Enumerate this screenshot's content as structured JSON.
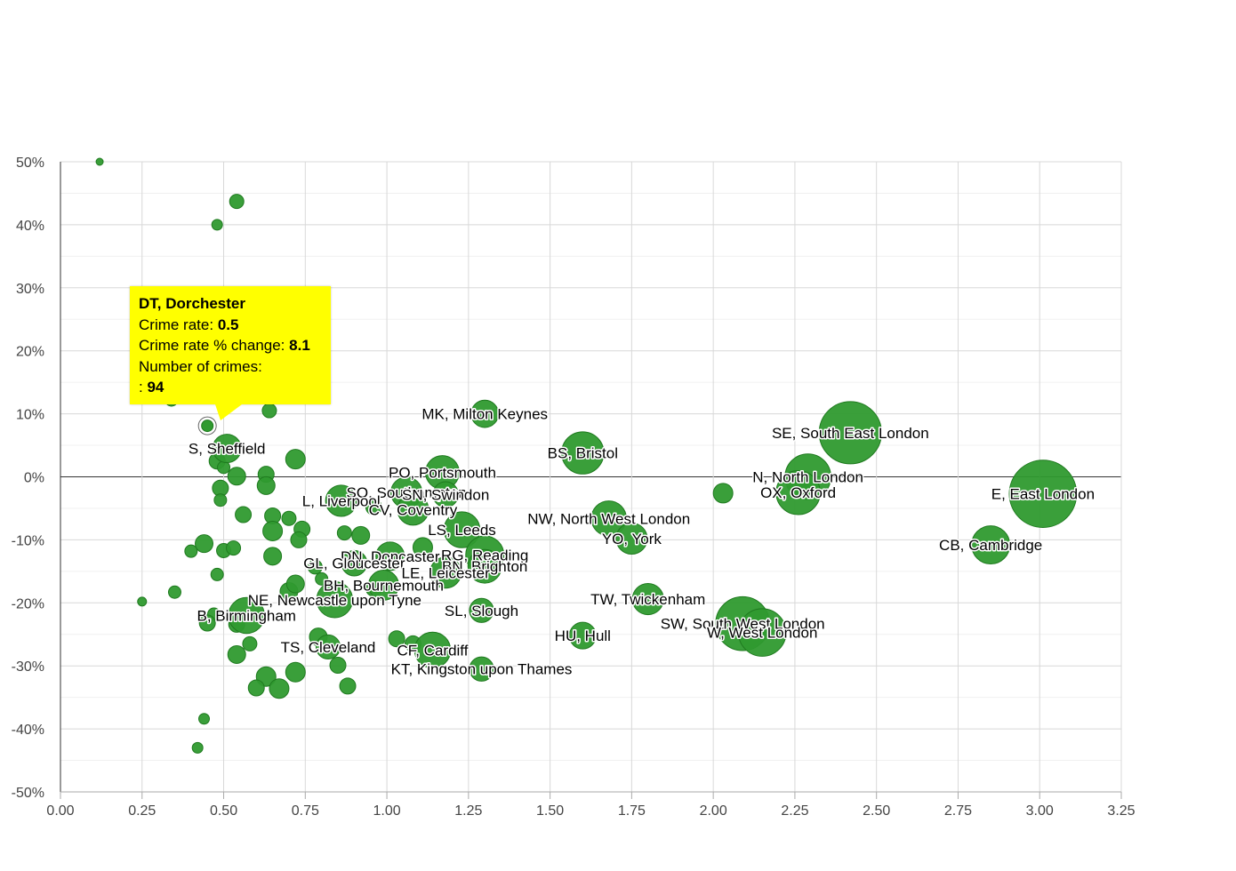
{
  "chart_data": {
    "type": "scatter",
    "variant": "bubble",
    "xlim": [
      0,
      3.25
    ],
    "ylim": [
      -50,
      50
    ],
    "x_ticks": [
      0,
      0.25,
      0.5,
      0.75,
      1,
      1.25,
      1.5,
      1.75,
      2,
      2.25,
      2.5,
      2.75,
      3,
      3.25
    ],
    "x_tick_labels": [
      "0.00",
      "0.25",
      "0.50",
      "0.75",
      "1.00",
      "1.25",
      "1.50",
      "1.75",
      "2.00",
      "2.25",
      "2.50",
      "2.75",
      "3.00",
      "3.25"
    ],
    "y_ticks": [
      50,
      40,
      30,
      20,
      10,
      0,
      -10,
      -20,
      -30,
      -40,
      -50
    ],
    "y_tick_labels": [
      "50%",
      "40%",
      "30%",
      "20%",
      "10%",
      "0%",
      "-10%",
      "-20%",
      "-30%",
      "-40%",
      "-50%"
    ],
    "grid": true,
    "bubble_color": "#2f9a2f",
    "bubble_stroke": "#1f7a1f",
    "tooltip_color": "#ffff00",
    "labeled_points": [
      {
        "label": "MK, Milton Keynes",
        "x": 1.3,
        "y": 10,
        "crimes": 2300
      },
      {
        "label": "SE, South East London",
        "x": 2.42,
        "y": 7,
        "crimes": 12000
      },
      {
        "label": "BS, Bristol",
        "x": 1.6,
        "y": 3.8,
        "crimes": 5500
      },
      {
        "label": "PO, Portsmouth",
        "x": 1.17,
        "y": 0.7,
        "crimes": 3500
      },
      {
        "label": "N, North London",
        "x": 2.29,
        "y": 0,
        "crimes": 6500
      },
      {
        "label": "OX, Oxford",
        "x": 2.26,
        "y": -2.5,
        "crimes": 6000
      },
      {
        "label": "E, East London",
        "x": 3.01,
        "y": -2.7,
        "crimes": 14000
      },
      {
        "label": "S, Sheffield",
        "x": 0.51,
        "y": 4.5,
        "crimes": 2500
      },
      {
        "label": "SO, Southampton",
        "x": 1.06,
        "y": -2.5,
        "crimes": 3000
      },
      {
        "label": "SN, Swindon",
        "x": 1.18,
        "y": -2.8,
        "crimes": 2000
      },
      {
        "label": "L, Liverpool",
        "x": 0.86,
        "y": -3.8,
        "crimes": 3000
      },
      {
        "label": "CV, Coventry",
        "x": 1.08,
        "y": -5.2,
        "crimes": 3000
      },
      {
        "label": "NW, North West London",
        "x": 1.68,
        "y": -6.6,
        "crimes": 3800
      },
      {
        "label": "LS, Leeds",
        "x": 1.23,
        "y": -8.4,
        "crimes": 4000
      },
      {
        "label": "YO, York",
        "x": 1.75,
        "y": -9.8,
        "crimes": 3000
      },
      {
        "label": "CB, Cambridge",
        "x": 2.85,
        "y": -10.8,
        "crimes": 4500
      },
      {
        "label": "DN, Doncaster",
        "x": 1.01,
        "y": -12.6,
        "crimes": 2500
      },
      {
        "label": "RG, Reading",
        "x": 1.3,
        "y": -12.4,
        "crimes": 4500
      },
      {
        "label": "GL, Gloucester",
        "x": 0.9,
        "y": -13.7,
        "crimes": 2000
      },
      {
        "label": "BN, Brighton",
        "x": 1.3,
        "y": -14.2,
        "crimes": 3500
      },
      {
        "label": "LE, Leicester",
        "x": 1.18,
        "y": -15.2,
        "crimes": 3000
      },
      {
        "label": "BH, Bournemouth",
        "x": 0.99,
        "y": -17.2,
        "crimes": 2800
      },
      {
        "label": "NE, Newcastle upon Tyne",
        "x": 0.84,
        "y": -19.5,
        "crimes": 4000
      },
      {
        "label": "TW, Twickenham",
        "x": 1.8,
        "y": -19.4,
        "crimes": 3000
      },
      {
        "label": "SL, Slough",
        "x": 1.29,
        "y": -21.2,
        "crimes": 1800
      },
      {
        "label": "B, Birmingham",
        "x": 0.57,
        "y": -22,
        "crimes": 4000
      },
      {
        "label": "SW, South West London",
        "x": 2.09,
        "y": -23.3,
        "crimes": 9000
      },
      {
        "label": "W, West London",
        "x": 2.15,
        "y": -24.7,
        "crimes": 7000
      },
      {
        "label": "HU, Hull",
        "x": 1.6,
        "y": -25.2,
        "crimes": 2200
      },
      {
        "label": "TS, Cleveland",
        "x": 0.82,
        "y": -27,
        "crimes": 1800
      },
      {
        "label": "CF, Cardiff",
        "x": 1.14,
        "y": -27.5,
        "crimes": 4000
      },
      {
        "label": "KT, Kingston upon Thames",
        "x": 1.29,
        "y": -30.5,
        "crimes": 1800
      }
    ],
    "highlighted_point": {
      "label": "DT, Dorchester",
      "x": 0.45,
      "y": 8.1,
      "crimes": 94
    },
    "unlabeled_points": [
      {
        "x": 0.12,
        "y": 50,
        "r": 4
      },
      {
        "x": 0.54,
        "y": 43.7,
        "r": 8
      },
      {
        "x": 0.48,
        "y": 40,
        "r": 6
      },
      {
        "x": 0.34,
        "y": 12.2,
        "r": 7
      },
      {
        "x": 0.64,
        "y": 10.5,
        "r": 8
      },
      {
        "x": 0.48,
        "y": 2.5,
        "r": 9
      },
      {
        "x": 0.5,
        "y": 1.5,
        "r": 7
      },
      {
        "x": 0.54,
        "y": 0.1,
        "r": 10
      },
      {
        "x": 0.63,
        "y": 0.4,
        "r": 9
      },
      {
        "x": 0.72,
        "y": 2.8,
        "r": 11
      },
      {
        "x": 0.63,
        "y": -1.4,
        "r": 10
      },
      {
        "x": 0.49,
        "y": -1.8,
        "r": 9
      },
      {
        "x": 0.49,
        "y": -3.7,
        "r": 7
      },
      {
        "x": 0.56,
        "y": -6.0,
        "r": 9
      },
      {
        "x": 0.65,
        "y": -6.2,
        "r": 9
      },
      {
        "x": 0.7,
        "y": -6.6,
        "r": 8
      },
      {
        "x": 0.65,
        "y": -8.6,
        "r": 11
      },
      {
        "x": 0.74,
        "y": -8.3,
        "r": 9
      },
      {
        "x": 0.73,
        "y": -10.0,
        "r": 9
      },
      {
        "x": 0.87,
        "y": -8.9,
        "r": 8
      },
      {
        "x": 0.92,
        "y": -9.3,
        "r": 10
      },
      {
        "x": 0.44,
        "y": -10.6,
        "r": 10
      },
      {
        "x": 0.4,
        "y": -11.8,
        "r": 7
      },
      {
        "x": 0.5,
        "y": -11.7,
        "r": 8
      },
      {
        "x": 0.53,
        "y": -11.3,
        "r": 8
      },
      {
        "x": 0.65,
        "y": -12.6,
        "r": 10
      },
      {
        "x": 0.78,
        "y": -14.3,
        "r": 8
      },
      {
        "x": 0.48,
        "y": -15.5,
        "r": 7
      },
      {
        "x": 0.8,
        "y": -16.2,
        "r": 7
      },
      {
        "x": 0.35,
        "y": -18.3,
        "r": 7
      },
      {
        "x": 0.25,
        "y": -19.8,
        "r": 5
      },
      {
        "x": 0.7,
        "y": -18.2,
        "r": 10
      },
      {
        "x": 0.72,
        "y": -17.0,
        "r": 10
      },
      {
        "x": 0.47,
        "y": -21.8,
        "r": 7
      },
      {
        "x": 0.45,
        "y": -23.2,
        "r": 9
      },
      {
        "x": 0.54,
        "y": -23.4,
        "r": 9
      },
      {
        "x": 0.58,
        "y": -26.5,
        "r": 8
      },
      {
        "x": 0.54,
        "y": -28.2,
        "r": 10
      },
      {
        "x": 0.79,
        "y": -25.4,
        "r": 10
      },
      {
        "x": 0.85,
        "y": -29.9,
        "r": 9
      },
      {
        "x": 0.63,
        "y": -31.7,
        "r": 11
      },
      {
        "x": 0.72,
        "y": -31.0,
        "r": 11
      },
      {
        "x": 0.6,
        "y": -33.5,
        "r": 9
      },
      {
        "x": 0.67,
        "y": -33.6,
        "r": 11
      },
      {
        "x": 0.88,
        "y": -33.2,
        "r": 9
      },
      {
        "x": 1.03,
        "y": -25.7,
        "r": 9
      },
      {
        "x": 1.08,
        "y": -26.5,
        "r": 9
      },
      {
        "x": 1.11,
        "y": -11.2,
        "r": 11
      },
      {
        "x": 0.96,
        "y": -4.8,
        "r": 9
      },
      {
        "x": 0.96,
        "y": -17.7,
        "r": 9
      },
      {
        "x": 2.03,
        "y": -2.6,
        "r": 11
      },
      {
        "x": 0.44,
        "y": -38.4,
        "r": 6
      },
      {
        "x": 0.42,
        "y": -43.0,
        "r": 6
      }
    ],
    "tooltip": {
      "title": "DT, Dorchester",
      "rate_label": "Crime rate:",
      "rate_value": "0.5",
      "change_label": "Crime rate % change:",
      "change_value": "8.1",
      "count_label": "Number of crimes:",
      "count_prefix": ":",
      "count_value": "94"
    }
  }
}
